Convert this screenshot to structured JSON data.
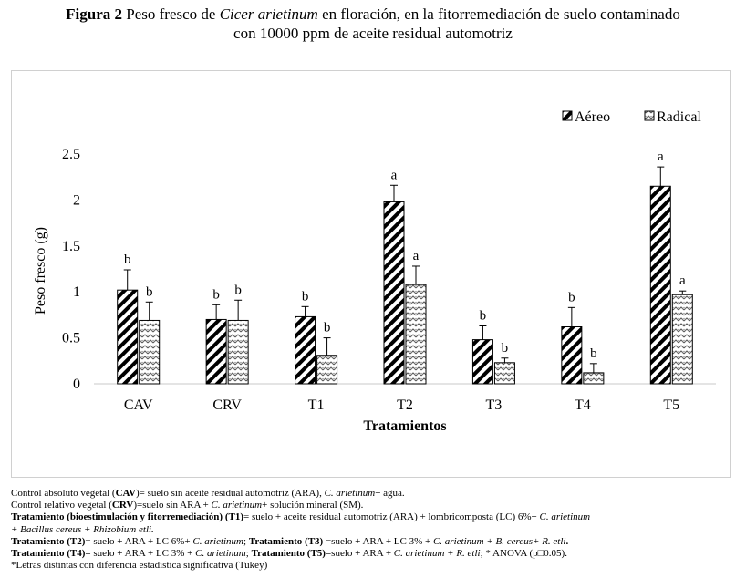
{
  "caption": {
    "label": "Figura 2",
    "pre": " Peso fresco de ",
    "species": "Cicer arietinum",
    "post": " en floración, en la fitorremediación de suelo contaminado",
    "line2": "con 10000 ppm de aceite residual automotriz"
  },
  "chart_data": {
    "type": "bar",
    "categories": [
      "CAV",
      "CRV",
      "T1",
      "T2",
      "T3",
      "T4",
      "T5"
    ],
    "series": [
      {
        "name": "Aéreo",
        "pattern": "diagonal-stripes",
        "values": [
          1.02,
          0.7,
          0.73,
          1.98,
          0.48,
          0.62,
          2.15
        ],
        "errors": [
          0.22,
          0.16,
          0.11,
          0.18,
          0.15,
          0.21,
          0.21
        ],
        "letters": [
          "b",
          "b",
          "b",
          "a",
          "b",
          "b",
          "a"
        ]
      },
      {
        "name": "Radical",
        "pattern": "zigzag",
        "values": [
          0.69,
          0.69,
          0.31,
          1.08,
          0.23,
          0.12,
          0.97
        ],
        "errors": [
          0.2,
          0.22,
          0.19,
          0.2,
          0.05,
          0.1,
          0.04
        ],
        "letters": [
          "b",
          "b",
          "b",
          "a",
          "b",
          "b",
          "a"
        ]
      }
    ],
    "xlabel": "Tratamientos",
    "ylabel": "Peso fresco (g)",
    "ylim": [
      0,
      2.5
    ],
    "yticks": [
      "0",
      "0.5",
      "1",
      "1.5",
      "2",
      "2.5"
    ],
    "grid": false,
    "legend": "top-right"
  },
  "notes": {
    "n1": {
      "pre": "Control absoluto vegetal (",
      "abbr": "CAV",
      "mid": ")",
      "post": "= suelo sin aceite residual automotriz (ARA), ",
      "species": "C. arietinum",
      "end": "+ agua."
    },
    "n2": {
      "pre": "Control relativo vegetal (",
      "abbr": "CRV",
      "mid": ")",
      "post": "=suelo sin ARA + ",
      "species": "C. arietinum",
      "end": "+ solución mineral (SM)."
    },
    "n3": {
      "bold": "Tratamiento (bioestimulación y fitorremediación) (T1)",
      "post": "= suelo + aceite residual automotriz (ARA) + lombricomposta (LC) 6%+ ",
      "species": "C. arietinum"
    },
    "n4": {
      "ital": "+ Bacillus cereus + Rhizobium etli."
    },
    "n5": {
      "b1": "Tratamiento (T2)",
      "t1": "=  suelo + ARA + LC 6%+ ",
      "s1": "C. arietinum",
      "t2": "; ",
      "b2": "Tratamiento (T3)",
      "t3": " =suelo + ARA + LC 3% + ",
      "s2": "C. arietinum + B. cereus+ R. etli",
      "t4": "."
    },
    "n6": {
      "b1": "Tratamiento (T4)",
      "t1": "= suelo + ARA + LC 3% +  ",
      "s1": "C. arietinum",
      "t2": "; ",
      "b2": "Tratamiento (T5)",
      "t3": "=suelo + ARA + ",
      "s2": "C. arietinum + R. etli",
      "t4": "; * ANOVA (p□0.05)."
    },
    "n7": {
      "text": "*Letras distintas con diferencia estadística significativa (Tukey)"
    }
  }
}
